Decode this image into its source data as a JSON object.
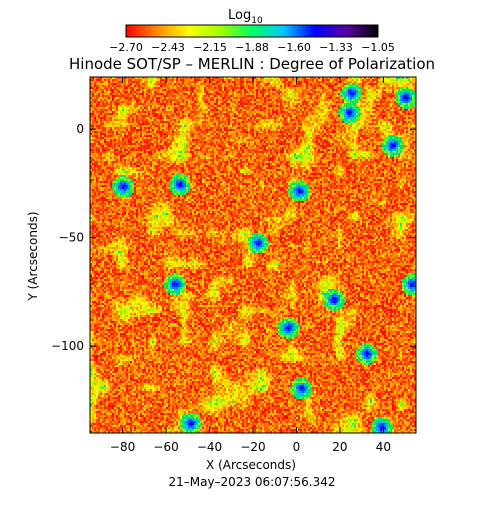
{
  "chart_data": {
    "type": "heatmap",
    "title": "Hinode SOT/SP – MERLIN : Degree of Polarization",
    "xlabel": "X (Arcseconds)",
    "ylabel": "Y (Arcseconds)",
    "xlim": [
      -95,
      55
    ],
    "ylim": [
      -140,
      24
    ],
    "x_ticks": [
      "-80",
      "-60",
      "-40",
      "-20",
      "0",
      "20",
      "40"
    ],
    "y_ticks": [
      "0",
      "-50",
      "-100"
    ],
    "timestamp": "21–May–2023 06:07:56.342",
    "colorbar": {
      "label": "Log",
      "label_subscript": "10",
      "range": [
        -2.7,
        -1.05
      ],
      "ticks": [
        "−2.70",
        "−2.43",
        "−2.15",
        "−1.88",
        "−1.60",
        "−1.33",
        "−1.05"
      ],
      "colormap": [
        "#000000",
        "#5a00a0",
        "#0000ff",
        "#00c8ff",
        "#00ff64",
        "#a0ff00",
        "#ffff00",
        "#ff8c00",
        "#ff0000"
      ]
    },
    "features": "dominant red/orange noise with scattered yellow-green network and small blue magnetic concentrations"
  }
}
